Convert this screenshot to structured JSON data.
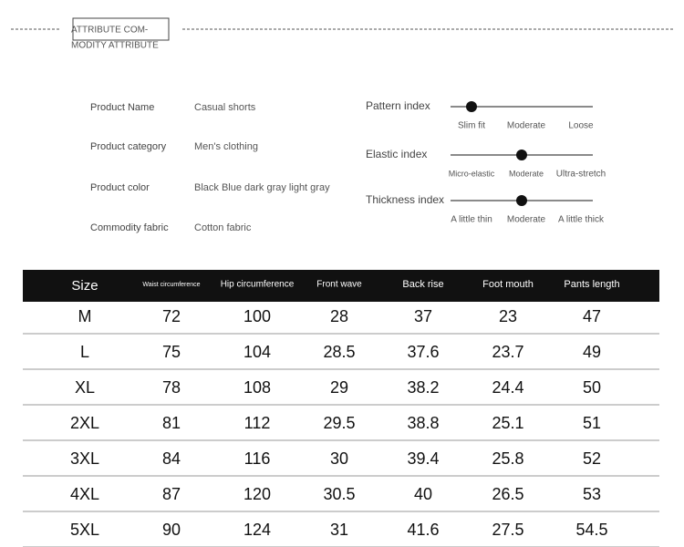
{
  "header": {
    "title_lines": [
      "ATTRIBUTE COM-",
      "MODITY ATTRIBUTE"
    ]
  },
  "attributes": [
    {
      "label": "Product Name",
      "value": "Casual shorts"
    },
    {
      "label": "Product category",
      "value": "Men's clothing"
    },
    {
      "label": "Product color",
      "value": "Black Blue dark gray light gray"
    },
    {
      "label": "Commodity fabric",
      "value": "Cotton fabric"
    }
  ],
  "indexes": [
    {
      "label": "Pattern index",
      "options": [
        "Slim fit",
        "Moderate",
        "Loose"
      ],
      "selected": 0
    },
    {
      "label": "Elastic index",
      "options": [
        "Micro-elastic",
        "Moderate",
        "Ultra-stretch"
      ],
      "selected": 1
    },
    {
      "label": "Thickness index",
      "options": [
        "A little thin",
        "Moderate",
        "A little thick"
      ],
      "selected": 1
    }
  ],
  "table": {
    "columns": [
      "Size",
      "Waist circumference",
      "Hip circumference",
      "Front wave",
      "Back rise",
      "Foot mouth",
      "Pants length"
    ],
    "rows": [
      [
        "M",
        72,
        100,
        28,
        37,
        23,
        47
      ],
      [
        "L",
        75,
        104,
        28.5,
        37.6,
        23.7,
        49
      ],
      [
        "XL",
        78,
        108,
        29,
        38.2,
        24.4,
        50
      ],
      [
        "2XL",
        81,
        112,
        29.5,
        38.8,
        25.1,
        51
      ],
      [
        "3XL",
        84,
        116,
        30,
        39.4,
        25.8,
        52
      ],
      [
        "4XL",
        87,
        120,
        30.5,
        40,
        26.5,
        53
      ],
      [
        "5XL",
        90,
        124,
        31,
        41.6,
        27.5,
        54.5
      ]
    ]
  }
}
